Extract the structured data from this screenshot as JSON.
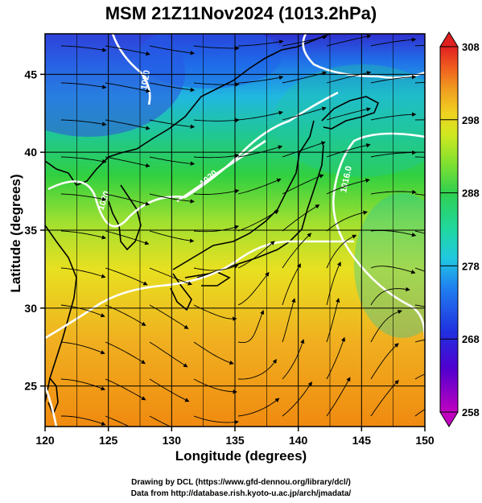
{
  "title": "MSM 21Z11Nov2024 (1013.2hPa)",
  "x_axis": {
    "label": "Longitude (degrees)",
    "min": 120,
    "max": 150,
    "ticks": [
      "120",
      "125",
      "130",
      "135",
      "140",
      "145",
      "150"
    ]
  },
  "y_axis": {
    "label": "Latitude  (degrees)",
    "min": 22.4,
    "max": 47.6,
    "ticks": [
      "25",
      "30",
      "35",
      "40",
      "45"
    ]
  },
  "colorbar": {
    "min": 258,
    "max": 308,
    "ticks": [
      "308",
      "298",
      "288",
      "278",
      "268",
      "258"
    ],
    "colors": [
      "#c000c0",
      "#5000d0",
      "#2030e0",
      "#2080f0",
      "#20c8e0",
      "#20d8a0",
      "#30d050",
      "#80e030",
      "#d0e820",
      "#f0d020",
      "#f0a020",
      "#f06020",
      "#e02020"
    ]
  },
  "isobar_labels": [
    "1020",
    "1020",
    "1020",
    "1016.0"
  ],
  "credits": {
    "line1": "Drawing by DCL (https://www.gfd-dennou.org/library/dcl/)",
    "line2": "Data from http://database.rish.kyoto-u.ac.jp/arch/jmadata/"
  },
  "chart_data": {
    "type": "heatmap",
    "title": "MSM 21Z11Nov2024 (1013.2hPa)",
    "xlabel": "Longitude (degrees)",
    "ylabel": "Latitude  (degrees)",
    "xlim": [
      120,
      150
    ],
    "ylim": [
      22.4,
      47.6
    ],
    "color_range": [
      258,
      308
    ],
    "grid": true,
    "temperature_pattern": "warm (~298-300) in south, cooling northward to ~270 near 47N",
    "isobars": [
      {
        "label": "1020",
        "points": [
          [
            121,
            37.5
          ],
          [
            122.5,
            36
          ],
          [
            125,
            36
          ],
          [
            126.5,
            38
          ],
          [
            129,
            39.5
          ],
          [
            133,
            40.5
          ],
          [
            137,
            42
          ],
          [
            140,
            42.5
          ]
        ]
      },
      {
        "label": "1020",
        "points": [
          [
            127,
            38
          ],
          [
            129,
            37
          ],
          [
            131,
            37.6
          ],
          [
            134,
            39
          ],
          [
            136,
            40
          ],
          [
            139,
            42.6
          ],
          [
            141,
            43.5
          ]
        ]
      },
      {
        "label": "1016.0",
        "points": [
          [
            145.5,
            42
          ],
          [
            144,
            39
          ],
          [
            143,
            36
          ],
          [
            144,
            33
          ],
          [
            147,
            31
          ],
          [
            150,
            30
          ]
        ]
      },
      {
        "label": "",
        "points": [
          [
            125,
            30
          ],
          [
            128,
            32
          ],
          [
            132,
            32.5
          ],
          [
            137,
            33.5
          ],
          [
            141,
            34
          ],
          [
            143,
            35
          ]
        ]
      }
    ]
  }
}
